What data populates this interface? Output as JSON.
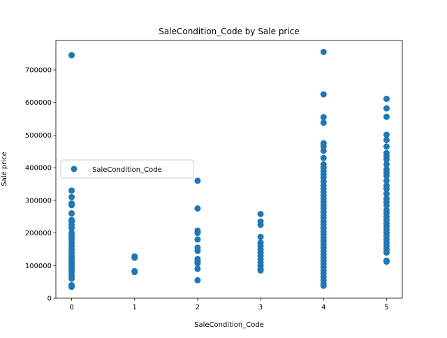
{
  "chart_data": {
    "type": "scatter",
    "title": "SaleCondition_Code by Sale price",
    "xlabel": "SaleCondition_Code",
    "ylabel": "Sale price",
    "xlim": [
      -0.25,
      5.25
    ],
    "ylim": [
      0,
      790000
    ],
    "x_ticks": [
      0,
      1,
      2,
      3,
      4,
      5
    ],
    "y_ticks": [
      0,
      100000,
      200000,
      300000,
      400000,
      500000,
      600000,
      700000
    ],
    "grid": false,
    "legend_position": "center-left",
    "color": "#1f77b4",
    "series": [
      {
        "name": "SaleCondition_Code",
        "points": [
          {
            "x": 0,
            "y": 745000
          },
          {
            "x": 0,
            "y": 330000
          },
          {
            "x": 0,
            "y": 310000
          },
          {
            "x": 0,
            "y": 290000
          },
          {
            "x": 0,
            "y": 285000
          },
          {
            "x": 0,
            "y": 260000
          },
          {
            "x": 0,
            "y": 240000
          },
          {
            "x": 0,
            "y": 235000
          },
          {
            "x": 0,
            "y": 225000
          },
          {
            "x": 0,
            "y": 215000
          },
          {
            "x": 0,
            "y": 200000
          },
          {
            "x": 0,
            "y": 190000
          },
          {
            "x": 0,
            "y": 180000
          },
          {
            "x": 0,
            "y": 170000
          },
          {
            "x": 0,
            "y": 160000
          },
          {
            "x": 0,
            "y": 150000
          },
          {
            "x": 0,
            "y": 140000
          },
          {
            "x": 0,
            "y": 130000
          },
          {
            "x": 0,
            "y": 125000
          },
          {
            "x": 0,
            "y": 118000
          },
          {
            "x": 0,
            "y": 110000
          },
          {
            "x": 0,
            "y": 105000
          },
          {
            "x": 0,
            "y": 98000
          },
          {
            "x": 0,
            "y": 90000
          },
          {
            "x": 0,
            "y": 85000
          },
          {
            "x": 0,
            "y": 80000
          },
          {
            "x": 0,
            "y": 68000
          },
          {
            "x": 0,
            "y": 60000
          },
          {
            "x": 0,
            "y": 40000
          },
          {
            "x": 0,
            "y": 35000
          },
          {
            "x": 1,
            "y": 128000
          },
          {
            "x": 1,
            "y": 124000
          },
          {
            "x": 1,
            "y": 83000
          },
          {
            "x": 1,
            "y": 80000
          },
          {
            "x": 2,
            "y": 360000
          },
          {
            "x": 2,
            "y": 275000
          },
          {
            "x": 2,
            "y": 207000
          },
          {
            "x": 2,
            "y": 200000
          },
          {
            "x": 2,
            "y": 180000
          },
          {
            "x": 2,
            "y": 155000
          },
          {
            "x": 2,
            "y": 145000
          },
          {
            "x": 2,
            "y": 120000
          },
          {
            "x": 2,
            "y": 113000
          },
          {
            "x": 2,
            "y": 107000
          },
          {
            "x": 2,
            "y": 90000
          },
          {
            "x": 2,
            "y": 55000
          },
          {
            "x": 3,
            "y": 258000
          },
          {
            "x": 3,
            "y": 235000
          },
          {
            "x": 3,
            "y": 225000
          },
          {
            "x": 3,
            "y": 188000
          },
          {
            "x": 3,
            "y": 170000
          },
          {
            "x": 3,
            "y": 160000
          },
          {
            "x": 3,
            "y": 150000
          },
          {
            "x": 3,
            "y": 140000
          },
          {
            "x": 3,
            "y": 130000
          },
          {
            "x": 3,
            "y": 120000
          },
          {
            "x": 3,
            "y": 110000
          },
          {
            "x": 3,
            "y": 100000
          },
          {
            "x": 3,
            "y": 90000
          },
          {
            "x": 3,
            "y": 85000
          },
          {
            "x": 4,
            "y": 755000
          },
          {
            "x": 4,
            "y": 625000
          },
          {
            "x": 4,
            "y": 555000
          },
          {
            "x": 4,
            "y": 538000
          },
          {
            "x": 4,
            "y": 475000
          },
          {
            "x": 4,
            "y": 465000
          },
          {
            "x": 4,
            "y": 452000
          },
          {
            "x": 4,
            "y": 430000
          },
          {
            "x": 4,
            "y": 410000
          },
          {
            "x": 4,
            "y": 400000
          },
          {
            "x": 4,
            "y": 390000
          },
          {
            "x": 4,
            "y": 380000
          },
          {
            "x": 4,
            "y": 370000
          },
          {
            "x": 4,
            "y": 358000
          },
          {
            "x": 4,
            "y": 345000
          },
          {
            "x": 4,
            "y": 335000
          },
          {
            "x": 4,
            "y": 325000
          },
          {
            "x": 4,
            "y": 315000
          },
          {
            "x": 4,
            "y": 305000
          },
          {
            "x": 4,
            "y": 295000
          },
          {
            "x": 4,
            "y": 285000
          },
          {
            "x": 4,
            "y": 275000
          },
          {
            "x": 4,
            "y": 265000
          },
          {
            "x": 4,
            "y": 255000
          },
          {
            "x": 4,
            "y": 245000
          },
          {
            "x": 4,
            "y": 235000
          },
          {
            "x": 4,
            "y": 225000
          },
          {
            "x": 4,
            "y": 215000
          },
          {
            "x": 4,
            "y": 205000
          },
          {
            "x": 4,
            "y": 195000
          },
          {
            "x": 4,
            "y": 185000
          },
          {
            "x": 4,
            "y": 175000
          },
          {
            "x": 4,
            "y": 165000
          },
          {
            "x": 4,
            "y": 155000
          },
          {
            "x": 4,
            "y": 145000
          },
          {
            "x": 4,
            "y": 135000
          },
          {
            "x": 4,
            "y": 125000
          },
          {
            "x": 4,
            "y": 115000
          },
          {
            "x": 4,
            "y": 105000
          },
          {
            "x": 4,
            "y": 95000
          },
          {
            "x": 4,
            "y": 85000
          },
          {
            "x": 4,
            "y": 75000
          },
          {
            "x": 4,
            "y": 65000
          },
          {
            "x": 4,
            "y": 55000
          },
          {
            "x": 4,
            "y": 45000
          },
          {
            "x": 4,
            "y": 38000
          },
          {
            "x": 5,
            "y": 611000
          },
          {
            "x": 5,
            "y": 582000
          },
          {
            "x": 5,
            "y": 556000
          },
          {
            "x": 5,
            "y": 501000
          },
          {
            "x": 5,
            "y": 485000
          },
          {
            "x": 5,
            "y": 465000
          },
          {
            "x": 5,
            "y": 445000
          },
          {
            "x": 5,
            "y": 435000
          },
          {
            "x": 5,
            "y": 425000
          },
          {
            "x": 5,
            "y": 410000
          },
          {
            "x": 5,
            "y": 395000
          },
          {
            "x": 5,
            "y": 385000
          },
          {
            "x": 5,
            "y": 375000
          },
          {
            "x": 5,
            "y": 360000
          },
          {
            "x": 5,
            "y": 345000
          },
          {
            "x": 5,
            "y": 335000
          },
          {
            "x": 5,
            "y": 320000
          },
          {
            "x": 5,
            "y": 305000
          },
          {
            "x": 5,
            "y": 295000
          },
          {
            "x": 5,
            "y": 285000
          },
          {
            "x": 5,
            "y": 270000
          },
          {
            "x": 5,
            "y": 260000
          },
          {
            "x": 5,
            "y": 250000
          },
          {
            "x": 5,
            "y": 240000
          },
          {
            "x": 5,
            "y": 230000
          },
          {
            "x": 5,
            "y": 220000
          },
          {
            "x": 5,
            "y": 210000
          },
          {
            "x": 5,
            "y": 200000
          },
          {
            "x": 5,
            "y": 190000
          },
          {
            "x": 5,
            "y": 180000
          },
          {
            "x": 5,
            "y": 170000
          },
          {
            "x": 5,
            "y": 160000
          },
          {
            "x": 5,
            "y": 150000
          },
          {
            "x": 5,
            "y": 140000
          },
          {
            "x": 5,
            "y": 115000
          },
          {
            "x": 5,
            "y": 112000
          }
        ]
      }
    ]
  }
}
